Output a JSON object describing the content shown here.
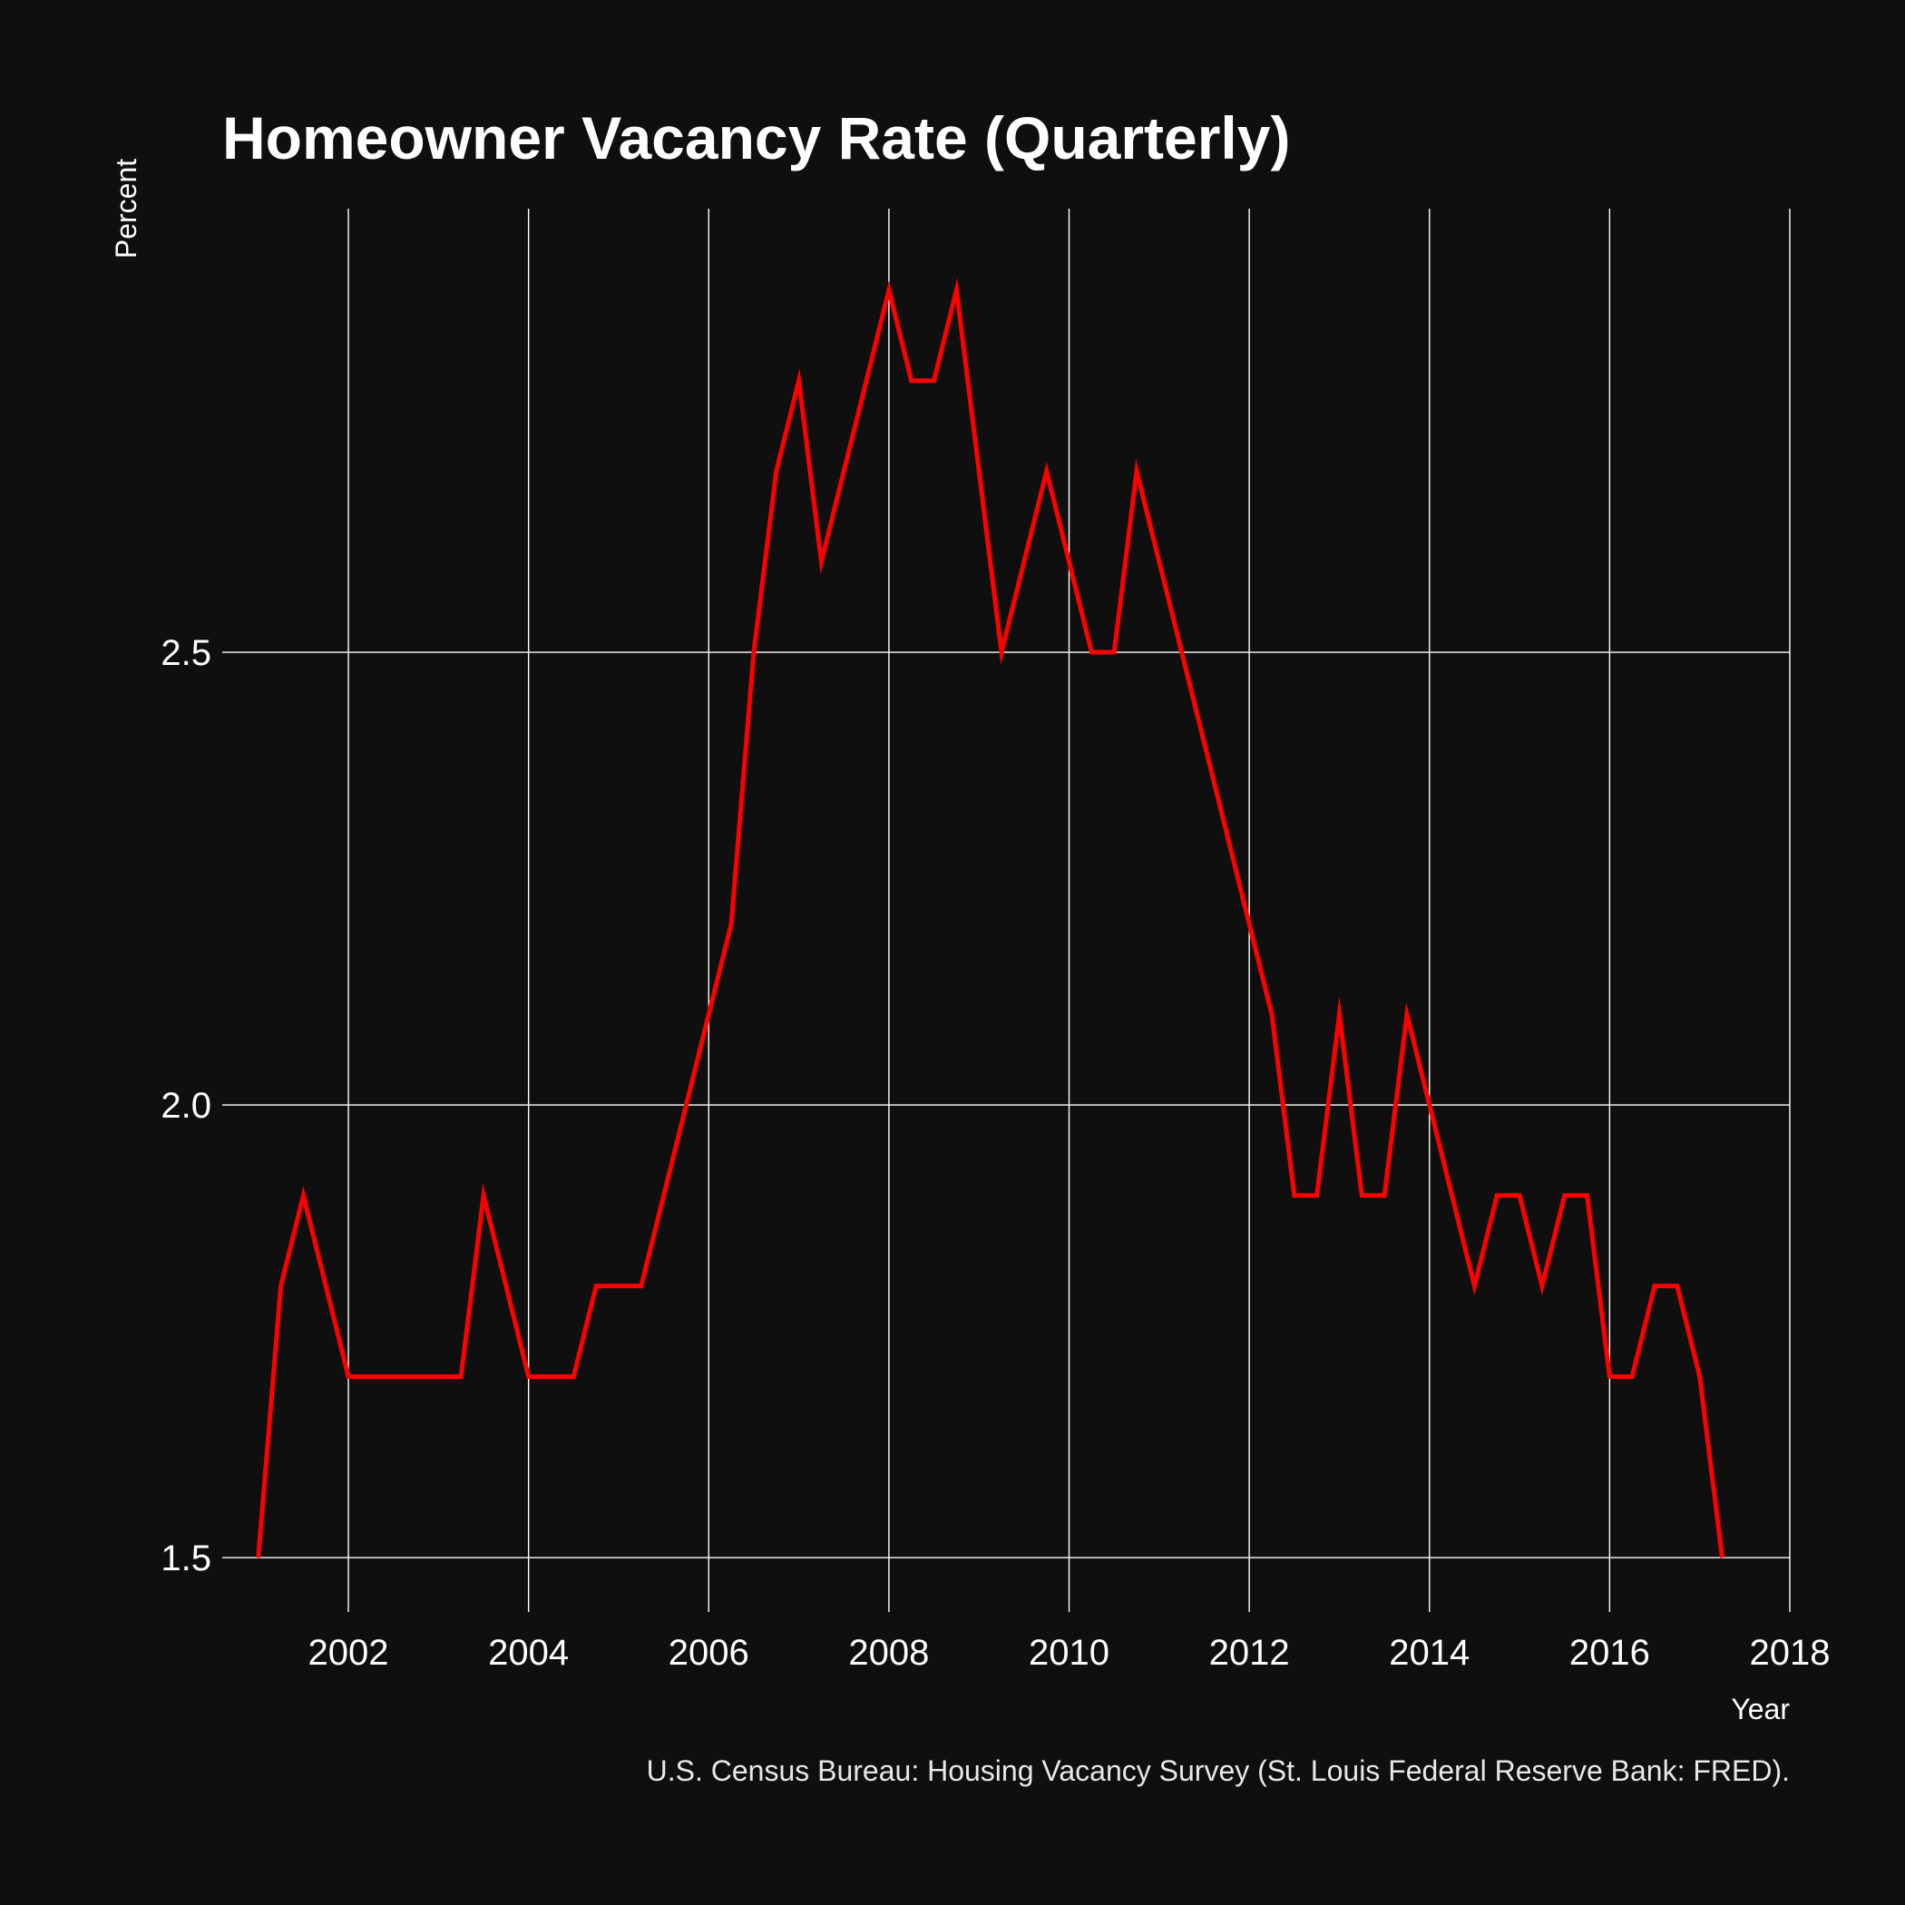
{
  "chart_data": {
    "type": "line",
    "title": "Homeowner Vacancy Rate (Quarterly)",
    "xlabel": "Year",
    "ylabel": "Percent",
    "caption": "U.S. Census Bureau: Housing Vacancy Survey (St. Louis Federal Reserve Bank: FRED).",
    "xlim": [
      2000.6,
      2018
    ],
    "ylim": [
      1.45,
      2.99
    ],
    "x_ticks": [
      2002,
      2004,
      2006,
      2008,
      2010,
      2012,
      2014,
      2016,
      2018
    ],
    "x_tick_labels": [
      "2002",
      "2004",
      "2006",
      "2008",
      "2010",
      "2012",
      "2014",
      "2016",
      "2018"
    ],
    "y_ticks": [
      1.5,
      2.0,
      2.5
    ],
    "y_tick_labels": [
      "1.5",
      "2.0",
      "2.5"
    ],
    "grid": true,
    "legend": "none",
    "colors": {
      "background": "#0f0f0f",
      "grid": "#ffffff",
      "line": "#ff0000",
      "text": "#ffffff"
    },
    "series": [
      {
        "x": [
          2001.0,
          2001.25,
          2001.5,
          2001.75,
          2002.0,
          2002.25,
          2002.5,
          2002.75,
          2003.0,
          2003.25,
          2003.5,
          2003.75,
          2004.0,
          2004.25,
          2004.5,
          2004.75,
          2005.0,
          2005.25,
          2005.5,
          2005.75,
          2006.0,
          2006.25,
          2006.5,
          2006.75,
          2007.0,
          2007.25,
          2007.5,
          2007.75,
          2008.0,
          2008.25,
          2008.5,
          2008.75,
          2009.0,
          2009.25,
          2009.5,
          2009.75,
          2010.0,
          2010.25,
          2010.5,
          2010.75,
          2011.0,
          2011.25,
          2011.5,
          2011.75,
          2012.0,
          2012.25,
          2012.5,
          2012.75,
          2013.0,
          2013.25,
          2013.5,
          2013.75,
          2014.0,
          2014.25,
          2014.5,
          2014.75,
          2015.0,
          2015.25,
          2015.5,
          2015.75,
          2016.0,
          2016.25,
          2016.5,
          2016.75,
          2017.0,
          2017.25
        ],
        "values": [
          1.5,
          1.8,
          1.9,
          1.8,
          1.7,
          1.7,
          1.7,
          1.7,
          1.7,
          1.7,
          1.9,
          1.8,
          1.7,
          1.7,
          1.7,
          1.8,
          1.8,
          1.8,
          1.9,
          2.0,
          2.1,
          2.2,
          2.5,
          2.7,
          2.8,
          2.6,
          2.7,
          2.8,
          2.9,
          2.8,
          2.8,
          2.9,
          2.7,
          2.5,
          2.6,
          2.7,
          2.6,
          2.5,
          2.5,
          2.7,
          2.6,
          2.5,
          2.4,
          2.3,
          2.2,
          2.1,
          1.9,
          1.9,
          2.1,
          1.9,
          1.9,
          2.1,
          2.0,
          1.9,
          1.8,
          1.9,
          1.9,
          1.8,
          1.9,
          1.9,
          1.7,
          1.7,
          1.8,
          1.8,
          1.7,
          1.5
        ]
      }
    ]
  }
}
